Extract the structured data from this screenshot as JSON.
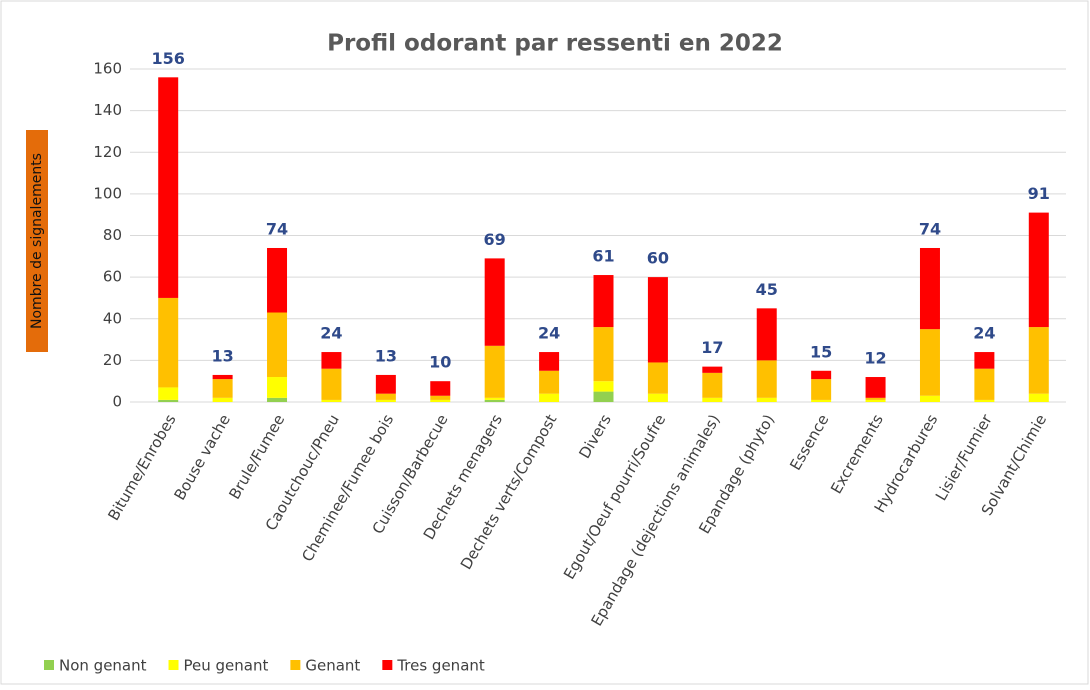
{
  "chart_data": {
    "type": "stacked_bar",
    "title": "Profil odorant par ressenti en 2022",
    "y_label": "Nombre de signalements",
    "categories": [
      "Bitume/Enrobes",
      "Bouse vache",
      "Brule/Fumee",
      "Caoutchouc/Pneu",
      "Cheminee/Fumee bois",
      "Cuisson/Barbecue",
      "Dechets menagers",
      "Dechets verts/Compost",
      "Divers",
      "Egout/Oeuf pourri/Soufre",
      "Epandage (dejections animales)",
      "Epandage (phyto)",
      "Essence",
      "Excrements",
      "Hydrocarbures",
      "Lisier/Fumier",
      "Solvant/Chimie"
    ],
    "series": [
      {
        "name": "Non genant",
        "color": "#92d050",
        "values": [
          1,
          0,
          2,
          0,
          0,
          0,
          1,
          0,
          5,
          0,
          0,
          0,
          0,
          0,
          0,
          0,
          0
        ]
      },
      {
        "name": "Peu genant",
        "color": "#ffff00",
        "values": [
          6,
          2,
          10,
          1,
          1,
          1,
          1,
          4,
          5,
          4,
          2,
          2,
          1,
          1,
          3,
          1,
          4
        ]
      },
      {
        "name": "Genant",
        "color": "#ffc000",
        "values": [
          43,
          9,
          31,
          15,
          3,
          2,
          25,
          11,
          26,
          15,
          12,
          18,
          10,
          1,
          32,
          15,
          32
        ]
      },
      {
        "name": "Tres genant",
        "color": "#ff0000",
        "values": [
          106,
          2,
          31,
          8,
          9,
          7,
          42,
          9,
          25,
          41,
          3,
          25,
          4,
          10,
          39,
          8,
          55
        ]
      }
    ],
    "total_labels": [
      156,
      13,
      74,
      24,
      13,
      10,
      69,
      24,
      61,
      60,
      17,
      45,
      15,
      12,
      74,
      24,
      91
    ],
    "ylim": [
      0,
      160
    ],
    "yticks": [
      0,
      20,
      40,
      60,
      80,
      100,
      120,
      140,
      160
    ],
    "grid": true,
    "legend": "bottom-left"
  }
}
